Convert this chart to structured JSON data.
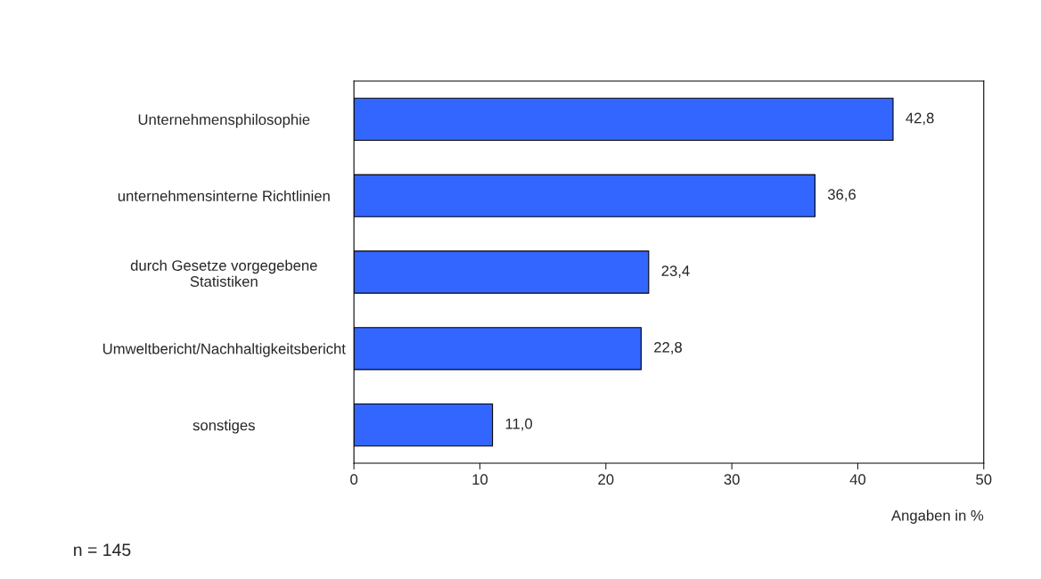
{
  "chart_data": {
    "type": "bar",
    "orientation": "horizontal",
    "categories": [
      "Unternehmensphilosophie",
      "unternehmensinterne Richtlinien",
      "durch Gesetze vorgegebene\nStatistiken",
      "Umweltbericht/Nachhaltigkeitsbericht",
      "sonstiges"
    ],
    "values": [
      42.8,
      36.6,
      23.4,
      22.8,
      11.0
    ],
    "value_labels": [
      "42,8",
      "36,6",
      "23,4",
      "22,8",
      "11,0"
    ],
    "color": "#3366ff",
    "xlim": [
      0,
      50
    ],
    "xticks": [
      0,
      10,
      20,
      30,
      40,
      50
    ],
    "xlabel": "Angaben in %",
    "annotations": [
      "n = 145"
    ],
    "grid": false,
    "legend": false
  }
}
